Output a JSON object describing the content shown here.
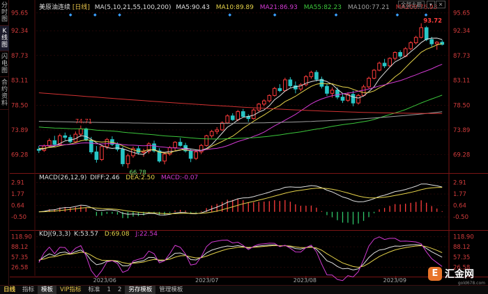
{
  "sidebar": {
    "items": [
      {
        "label": "分时图",
        "active": false
      },
      {
        "label": "K线图",
        "active": true
      },
      {
        "label": "闪电图",
        "active": false
      },
      {
        "label": "合约资料",
        "active": false
      }
    ]
  },
  "header": {
    "instrument": "美原油连续",
    "period": "[日线]",
    "ma_label": "MA(5,10,21,55,100,200)",
    "ma5": "MA5:90.43",
    "ma10": "MA10:89.89",
    "ma21": "MA21:86.93",
    "ma55": "MA55:82.23",
    "ma100": "MA100:77.21",
    "ma200": "MA200:76.93",
    "btn_full": "全部主题",
    "btn_menu": "▾",
    "btn_close": "✕"
  },
  "price_axis": [
    "95.65",
    "92.34",
    "87.73",
    "83.11",
    "78.50",
    "73.89",
    "69.28"
  ],
  "annotations": {
    "high": "93.72",
    "mid_high": "74.71",
    "low": "66.78"
  },
  "macd": {
    "label": "MACD(26,12,9)",
    "diff": "DIFF:2.46",
    "dea": "DEA:2.50",
    "macd": "MACD:-0.07",
    "axis": [
      "2.91",
      "1.77",
      "0.64",
      "-0.50"
    ]
  },
  "kdj": {
    "label": "KDJ(9,3,3)",
    "k": "K:53.57",
    "d": "D:69.08",
    "j": "J:22.54",
    "axis": [
      "118.90",
      "88.12",
      "57.35",
      "26.58"
    ]
  },
  "date_axis": [
    "2023/06",
    "2023/07",
    "2023/08",
    "2023/09"
  ],
  "bottom_bar": {
    "period": "日线",
    "tabs": [
      "指标",
      "模板",
      "VIP指标",
      "标准",
      "1",
      "2",
      "另存模板",
      "管理模板"
    ]
  },
  "logo": {
    "mark": "E",
    "text": "汇金网",
    "sub": "gold678.com"
  },
  "colors": {
    "up": "#ff3c3c",
    "down": "#28c6c6",
    "ma5": "#e0e0e0",
    "ma10": "#e6d34a",
    "ma21": "#d23ad2",
    "ma55": "#3cc83c",
    "ma100": "#a0a0a0",
    "ma200": "#d23232",
    "axis_text": "#d23c3c",
    "accent": "#e7c34a"
  },
  "chart_data": {
    "type": "candlestick",
    "title": "美原油连续 [日线]",
    "x_ticks": [
      "2023/06",
      "2023/07",
      "2023/08",
      "2023/09"
    ],
    "ylim": [
      66.0,
      96.5
    ],
    "price_yticks": [
      95.65,
      92.34,
      87.73,
      83.11,
      78.5,
      73.89,
      69.28
    ],
    "candles": [
      [
        70.3,
        70.9,
        69.6,
        70.1
      ],
      [
        70.1,
        71.2,
        69.8,
        70.9
      ],
      [
        70.9,
        72.3,
        70.6,
        71.9
      ],
      [
        71.9,
        72.8,
        71.0,
        71.2
      ],
      [
        71.2,
        73.2,
        70.9,
        72.8
      ],
      [
        72.8,
        73.4,
        72.0,
        72.5
      ],
      [
        72.5,
        73.0,
        71.4,
        71.7
      ],
      [
        71.7,
        73.6,
        71.5,
        73.1
      ],
      [
        73.1,
        74.71,
        72.6,
        74.1
      ],
      [
        74.1,
        74.3,
        71.8,
        72.0
      ],
      [
        72.0,
        72.6,
        69.4,
        69.8
      ],
      [
        69.8,
        70.9,
        67.8,
        68.4
      ],
      [
        68.4,
        71.1,
        68.1,
        70.8
      ],
      [
        70.8,
        72.4,
        70.3,
        72.1
      ],
      [
        72.1,
        72.7,
        70.9,
        71.2
      ],
      [
        71.2,
        71.6,
        69.9,
        70.3
      ],
      [
        70.3,
        70.8,
        67.1,
        67.6
      ],
      [
        67.6,
        69.5,
        66.78,
        69.1
      ],
      [
        69.1,
        70.8,
        68.7,
        70.4
      ],
      [
        70.4,
        70.9,
        69.3,
        69.7
      ],
      [
        69.7,
        70.4,
        68.9,
        69.9
      ],
      [
        69.9,
        71.6,
        69.5,
        71.3
      ],
      [
        71.3,
        71.9,
        69.7,
        70.0
      ],
      [
        70.0,
        70.5,
        67.8,
        68.1
      ],
      [
        68.1,
        69.7,
        67.5,
        69.4
      ],
      [
        69.4,
        70.9,
        69.1,
        70.6
      ],
      [
        70.6,
        71.8,
        70.1,
        71.6
      ],
      [
        71.6,
        72.4,
        70.8,
        71.0
      ],
      [
        71.0,
        71.5,
        69.7,
        70.0
      ],
      [
        70.0,
        70.4,
        67.9,
        68.6
      ],
      [
        68.6,
        70.1,
        68.3,
        69.8
      ],
      [
        69.8,
        71.3,
        69.4,
        71.0
      ],
      [
        71.0,
        73.0,
        70.8,
        72.8
      ],
      [
        72.8,
        73.9,
        72.4,
        73.6
      ],
      [
        73.6,
        74.4,
        73.1,
        73.9
      ],
      [
        73.9,
        75.5,
        73.7,
        75.2
      ],
      [
        75.2,
        76.8,
        75.0,
        76.5
      ],
      [
        76.5,
        77.0,
        75.6,
        75.8
      ],
      [
        75.8,
        77.6,
        75.5,
        77.3
      ],
      [
        77.3,
        77.8,
        76.2,
        76.4
      ],
      [
        76.4,
        76.8,
        75.4,
        76.0
      ],
      [
        76.0,
        77.9,
        75.8,
        77.6
      ],
      [
        77.6,
        78.9,
        77.3,
        78.7
      ],
      [
        78.7,
        79.6,
        78.3,
        79.3
      ],
      [
        79.3,
        80.5,
        79.0,
        80.3
      ],
      [
        80.3,
        81.9,
        80.1,
        81.6
      ],
      [
        81.6,
        82.4,
        80.9,
        81.2
      ],
      [
        81.2,
        83.6,
        81.0,
        83.2
      ],
      [
        83.2,
        83.7,
        81.8,
        82.1
      ],
      [
        82.1,
        82.9,
        80.7,
        81.5
      ],
      [
        81.5,
        82.6,
        81.1,
        82.3
      ],
      [
        82.3,
        84.1,
        82.0,
        83.8
      ],
      [
        83.8,
        84.9,
        83.4,
        84.6
      ],
      [
        84.6,
        85.0,
        82.9,
        83.3
      ],
      [
        83.3,
        83.8,
        81.6,
        82.0
      ],
      [
        82.0,
        82.4,
        80.2,
        80.7
      ],
      [
        80.7,
        81.8,
        79.9,
        81.3
      ],
      [
        81.3,
        81.8,
        79.6,
        80.0
      ],
      [
        80.0,
        80.6,
        78.9,
        79.4
      ],
      [
        79.4,
        80.9,
        79.1,
        80.5
      ],
      [
        80.5,
        81.2,
        78.3,
        78.9
      ],
      [
        78.9,
        80.6,
        78.6,
        80.3
      ],
      [
        80.3,
        82.3,
        80.1,
        81.9
      ],
      [
        81.9,
        83.8,
        81.6,
        83.5
      ],
      [
        83.5,
        85.2,
        83.3,
        85.0
      ],
      [
        85.0,
        86.6,
        84.8,
        86.3
      ],
      [
        86.3,
        87.1,
        85.4,
        85.8
      ],
      [
        85.8,
        87.4,
        85.6,
        87.2
      ],
      [
        87.2,
        88.5,
        86.8,
        88.3
      ],
      [
        88.3,
        88.7,
        87.2,
        87.6
      ],
      [
        87.6,
        89.3,
        87.4,
        89.0
      ],
      [
        89.0,
        90.4,
        88.7,
        90.1
      ],
      [
        90.1,
        91.4,
        89.8,
        91.1
      ],
      [
        91.1,
        93.72,
        90.9,
        92.9
      ],
      [
        92.9,
        93.2,
        90.4,
        90.7
      ],
      [
        90.7,
        91.2,
        89.4,
        89.9
      ],
      [
        89.9,
        90.4,
        88.8,
        90.2
      ],
      [
        90.2,
        90.6,
        89.6,
        89.8
      ]
    ],
    "ma_series": [
      {
        "name": "MA5",
        "last": 90.43
      },
      {
        "name": "MA10",
        "last": 89.89
      },
      {
        "name": "MA21",
        "last": 86.93
      },
      {
        "name": "MA55",
        "last": 82.23
      },
      {
        "name": "MA100",
        "last": 77.21
      },
      {
        "name": "MA200",
        "last": 76.93
      }
    ],
    "macd": {
      "diff": 2.46,
      "dea": 2.5,
      "macd": -0.07,
      "yticks": [
        2.91,
        1.77,
        0.64,
        -0.5
      ],
      "ylim": [
        -1.6,
        3.5
      ]
    },
    "kdj": {
      "k": 53.57,
      "d": 69.08,
      "j": 22.54,
      "yticks": [
        118.9,
        88.12,
        57.35,
        26.58
      ],
      "ylim": [
        5,
        130
      ]
    }
  }
}
